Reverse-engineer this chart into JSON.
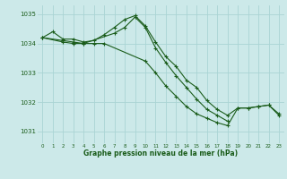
{
  "title": "Graphe pression niveau de la mer (hPa)",
  "bg_color": "#cce9e9",
  "grid_color": "#aad4d4",
  "line_color": "#1a5c1a",
  "xlim": [
    -0.5,
    23.5
  ],
  "ylim": [
    1030.6,
    1035.3
  ],
  "yticks": [
    1031,
    1032,
    1033,
    1034,
    1035
  ],
  "xticks": [
    0,
    1,
    2,
    3,
    4,
    5,
    6,
    7,
    8,
    9,
    10,
    11,
    12,
    13,
    14,
    15,
    16,
    17,
    18,
    19,
    20,
    21,
    22,
    23
  ],
  "series": [
    {
      "x": [
        0,
        1,
        2,
        3,
        4,
        5,
        6,
        7,
        8,
        9,
        10,
        11,
        12,
        13,
        14,
        15,
        16,
        17,
        18,
        19,
        20,
        21,
        22,
        23
      ],
      "y": [
        1034.2,
        1034.4,
        1034.15,
        1034.15,
        1034.05,
        1034.1,
        1034.3,
        1034.55,
        1034.82,
        1034.95,
        1034.6,
        1034.05,
        1033.55,
        1033.22,
        1032.75,
        1032.5,
        1032.05,
        1031.75,
        1031.55,
        1031.8,
        1031.8,
        1031.85,
        1031.9,
        1031.6
      ]
    },
    {
      "x": [
        0,
        2,
        3,
        4,
        7,
        8,
        9,
        10,
        11,
        12,
        13,
        14,
        15,
        16,
        17,
        18
      ],
      "y": [
        1034.2,
        1034.1,
        1034.05,
        1034.0,
        1034.35,
        1034.55,
        1034.9,
        1034.55,
        1033.85,
        1033.35,
        1032.9,
        1032.5,
        1032.1,
        1031.75,
        1031.55,
        1031.35
      ]
    },
    {
      "x": [
        0,
        2,
        3,
        4,
        5,
        6,
        10,
        11,
        12,
        13,
        14,
        15,
        16,
        17,
        18,
        19,
        20,
        21,
        22,
        23
      ],
      "y": [
        1034.2,
        1034.05,
        1034.0,
        1034.0,
        1034.0,
        1034.0,
        1033.4,
        1033.0,
        1032.55,
        1032.2,
        1031.85,
        1031.6,
        1031.45,
        1031.3,
        1031.2,
        1031.8,
        1031.8,
        1031.85,
        1031.9,
        1031.55
      ]
    }
  ]
}
